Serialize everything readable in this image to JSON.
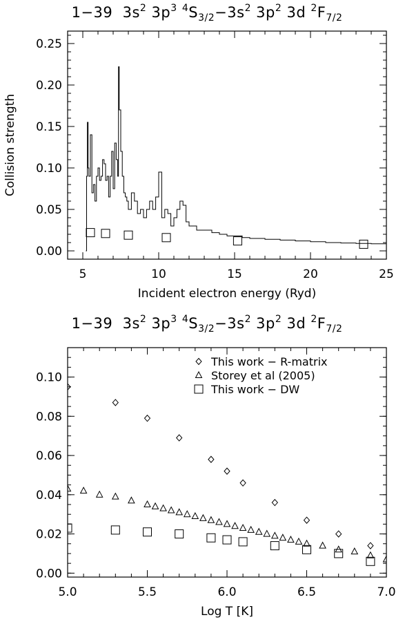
{
  "chart_data": [
    {
      "type": "line",
      "title": "1−39  3s² 3p³ ⁴S₃/₂−3s² 3p² 3d ²F₇/₂",
      "title_parts": {
        "index": "1−39",
        "lower": "3s",
        "lower_e1": "2",
        "lower_c2": "3p",
        "lower_e2": "3",
        "lower_term_mult": "4",
        "lower_term": "S",
        "lower_term_j": "3/2",
        "dash": "−",
        "upper": "3s",
        "upper_e1": "2",
        "upper_c2": "3p",
        "upper_e2": "2",
        "upper_c3": "3d",
        "upper_term_mult": "2",
        "upper_term": "F",
        "upper_term_j": "7/2"
      },
      "xlabel": "Incident electron energy (Ryd)",
      "ylabel": "Collision strength",
      "xlim": [
        4,
        25
      ],
      "ylim": [
        -0.01,
        0.265
      ],
      "x_ticks": [
        "5",
        "10",
        "15",
        "20",
        "25"
      ],
      "y_ticks": [
        "0.00",
        "0.05",
        "0.10",
        "0.15",
        "0.20",
        "0.25"
      ],
      "series": [
        {
          "style": "histogram-step",
          "x": [
            5.2,
            5.25,
            5.3,
            5.35,
            5.4,
            5.5,
            5.6,
            5.7,
            5.8,
            5.9,
            6.0,
            6.1,
            6.2,
            6.3,
            6.4,
            6.5,
            6.6,
            6.7,
            6.8,
            6.9,
            7.0,
            7.1,
            7.2,
            7.3,
            7.35,
            7.4,
            7.5,
            7.6,
            7.7,
            7.8,
            7.9,
            8.0,
            8.2,
            8.4,
            8.6,
            8.8,
            9.0,
            9.2,
            9.4,
            9.6,
            9.8,
            10.0,
            10.2,
            10.4,
            10.6,
            10.8,
            11.0,
            11.2,
            11.4,
            11.6,
            11.8,
            12.0,
            12.5,
            13.0,
            13.5,
            14.0,
            14.5,
            15.0,
            15.5,
            16.0,
            16.5,
            17.0,
            18.0,
            19.0,
            20.0,
            21.0,
            22.0,
            23.0,
            24.0,
            25.0
          ],
          "y": [
            0.0,
            0.09,
            0.155,
            0.1,
            0.09,
            0.14,
            0.07,
            0.08,
            0.06,
            0.09,
            0.1,
            0.085,
            0.09,
            0.11,
            0.105,
            0.085,
            0.09,
            0.065,
            0.09,
            0.12,
            0.075,
            0.13,
            0.11,
            0.09,
            0.222,
            0.17,
            0.12,
            0.09,
            0.07,
            0.065,
            0.06,
            0.05,
            0.07,
            0.06,
            0.045,
            0.05,
            0.04,
            0.05,
            0.06,
            0.05,
            0.065,
            0.095,
            0.04,
            0.05,
            0.045,
            0.03,
            0.04,
            0.05,
            0.06,
            0.055,
            0.035,
            0.03,
            0.025,
            0.025,
            0.022,
            0.02,
            0.018,
            0.018,
            0.016,
            0.015,
            0.015,
            0.014,
            0.013,
            0.012,
            0.011,
            0.01,
            0.0095,
            0.009,
            0.0085,
            0.008
          ]
        },
        {
          "marker": "square",
          "x": [
            5.5,
            6.5,
            8.0,
            10.5,
            15.2,
            23.5
          ],
          "y": [
            0.022,
            0.021,
            0.019,
            0.016,
            0.012,
            0.008
          ]
        }
      ]
    },
    {
      "type": "scatter",
      "title": "1−39  3s² 3p³ ⁴S₃/₂−3s² 3p² 3d ²F₇/₂",
      "xlabel": "Log T [K]",
      "ylabel": "",
      "xlim": [
        5.0,
        7.0
      ],
      "ylim": [
        -0.002,
        0.115
      ],
      "x_ticks": [
        "5.0",
        "5.5",
        "6.0",
        "6.5",
        "7.0"
      ],
      "y_ticks": [
        "0.00",
        "0.02",
        "0.04",
        "0.06",
        "0.08",
        "0.10"
      ],
      "legend_position": "top-right",
      "series": [
        {
          "name": "This work − R-matrix",
          "marker": "diamond",
          "x": [
            5.0,
            5.3,
            5.5,
            5.7,
            5.9,
            6.0,
            6.1,
            6.3,
            6.5,
            6.7,
            6.9
          ],
          "y": [
            0.095,
            0.087,
            0.079,
            0.069,
            0.058,
            0.052,
            0.046,
            0.036,
            0.027,
            0.02,
            0.014
          ]
        },
        {
          "name": "Storey et al (2005)",
          "marker": "triangle",
          "x": [
            5.0,
            5.1,
            5.2,
            5.3,
            5.4,
            5.5,
            5.55,
            5.6,
            5.65,
            5.7,
            5.75,
            5.8,
            5.85,
            5.9,
            5.95,
            6.0,
            6.05,
            6.1,
            6.15,
            6.2,
            6.25,
            6.3,
            6.35,
            6.4,
            6.45,
            6.5,
            6.6,
            6.7,
            6.8,
            6.9,
            7.0
          ],
          "y": [
            0.043,
            0.042,
            0.04,
            0.039,
            0.037,
            0.035,
            0.034,
            0.033,
            0.032,
            0.031,
            0.03,
            0.029,
            0.028,
            0.027,
            0.026,
            0.025,
            0.024,
            0.023,
            0.022,
            0.021,
            0.02,
            0.019,
            0.018,
            0.017,
            0.016,
            0.015,
            0.014,
            0.012,
            0.011,
            0.009,
            0.007
          ]
        },
        {
          "name": "This work − DW",
          "marker": "square",
          "x": [
            5.0,
            5.3,
            5.5,
            5.7,
            5.9,
            6.0,
            6.1,
            6.3,
            6.5,
            6.7,
            6.9
          ],
          "y": [
            0.023,
            0.022,
            0.021,
            0.02,
            0.018,
            0.017,
            0.016,
            0.014,
            0.012,
            0.01,
            0.006
          ]
        }
      ]
    }
  ]
}
